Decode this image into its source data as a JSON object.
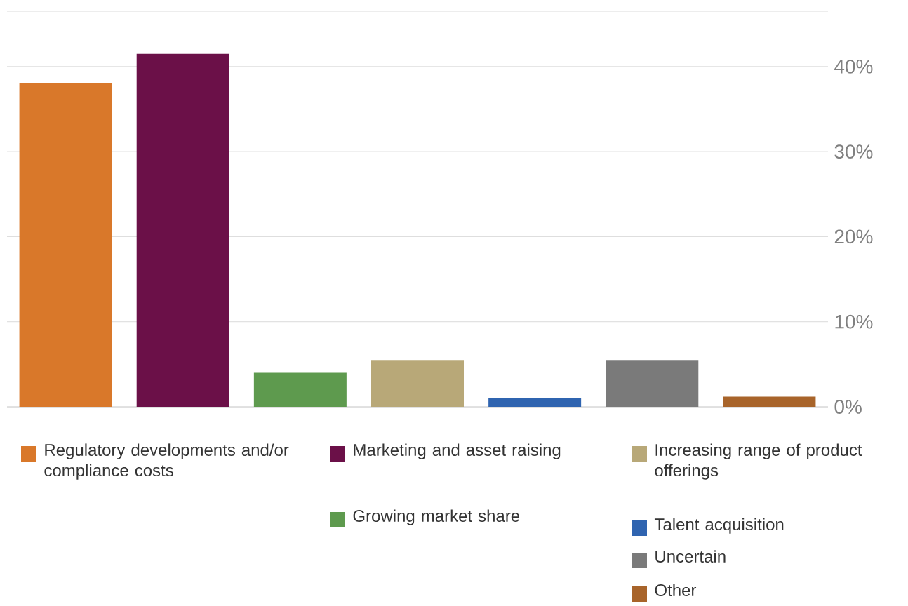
{
  "chart_data": {
    "type": "bar",
    "categories": [
      null,
      null,
      null,
      null,
      null,
      null,
      null
    ],
    "series": [
      {
        "name": "Regulatory developments and/or compliance costs",
        "color": "#d9782a",
        "values": [
          38,
          null,
          null,
          null,
          null,
          null,
          null
        ]
      },
      {
        "name": "Marketing and asset raising",
        "color": "#6b1048",
        "values": [
          null,
          41.5,
          null,
          null,
          null,
          null,
          null
        ]
      },
      {
        "name": "Growing market share",
        "color": "#5e9a4e",
        "values": [
          null,
          null,
          4,
          null,
          null,
          null,
          null
        ]
      },
      {
        "name": "Increasing range of product offerings",
        "color": "#b8a878",
        "values": [
          null,
          null,
          null,
          5.5,
          null,
          null,
          null
        ]
      },
      {
        "name": "Talent acquisition",
        "color": "#2f64b0",
        "values": [
          null,
          null,
          null,
          null,
          1,
          null,
          null
        ]
      },
      {
        "name": "Uncertain",
        "color": "#7a7a7a",
        "values": [
          null,
          null,
          null,
          null,
          null,
          5.5,
          null
        ]
      },
      {
        "name": "Other",
        "color": "#a8642a",
        "values": [
          null,
          null,
          null,
          null,
          null,
          null,
          1.2
        ]
      }
    ],
    "ylim": [
      0,
      46.5
    ],
    "yticks": [
      {
        "value": 0,
        "label": "0%"
      },
      {
        "value": 10,
        "label": "10%"
      },
      {
        "value": 20,
        "label": "20%"
      },
      {
        "value": 30,
        "label": "30%"
      },
      {
        "value": 40,
        "label": "40%"
      }
    ],
    "grid": "y",
    "legend": "bottom",
    "tick_labels": "y"
  }
}
